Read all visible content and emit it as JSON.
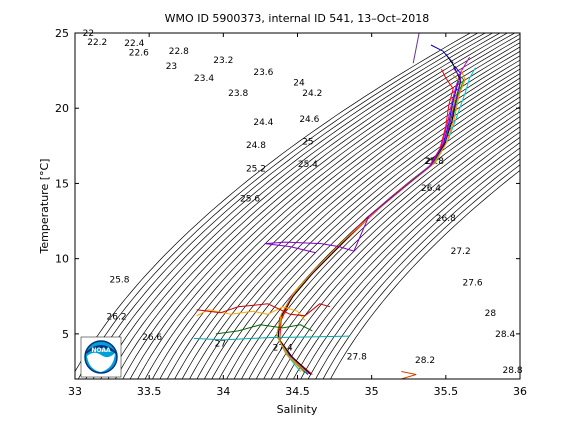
{
  "chart_data": {
    "type": "scatter",
    "title": "WMO ID 5900373, internal ID 541, 13–Oct–2018",
    "xlabel": "Salinity",
    "ylabel": "Temperature [°C]",
    "xlim": [
      33,
      36
    ],
    "ylim": [
      2,
      25
    ],
    "xticks": [
      33,
      33.5,
      34,
      34.5,
      35,
      35.5,
      36
    ],
    "yticks": [
      5,
      10,
      15,
      20,
      25
    ],
    "xtick_labels": [
      "33",
      "33.5",
      "34",
      "34.5",
      "35",
      "35.5",
      "36"
    ],
    "ytick_labels": [
      "5",
      "10",
      "15",
      "20",
      "25"
    ],
    "grid": false,
    "legend": "none",
    "sigma_contours": {
      "type": "density isopleths (sigma-theta)",
      "line_color": "#000000",
      "labels": [
        {
          "text": "22",
          "s": 33.09,
          "t": 24.8
        },
        {
          "text": "22.2",
          "s": 33.15,
          "t": 24.2
        },
        {
          "text": "22.4",
          "s": 33.4,
          "t": 24.15
        },
        {
          "text": "22.6",
          "s": 33.43,
          "t": 23.5
        },
        {
          "text": "22.8",
          "s": 33.7,
          "t": 23.6
        },
        {
          "text": "23",
          "s": 33.65,
          "t": 22.6
        },
        {
          "text": "23.2",
          "s": 34.0,
          "t": 23.0
        },
        {
          "text": "23.4",
          "s": 33.87,
          "t": 21.8
        },
        {
          "text": "23.6",
          "s": 34.27,
          "t": 22.2
        },
        {
          "text": "23.8",
          "s": 34.1,
          "t": 20.8
        },
        {
          "text": "24",
          "s": 34.51,
          "t": 21.5
        },
        {
          "text": "24.2",
          "s": 34.6,
          "t": 20.8
        },
        {
          "text": "24.4",
          "s": 34.27,
          "t": 18.9
        },
        {
          "text": "24.6",
          "s": 34.58,
          "t": 19.1
        },
        {
          "text": "24.8",
          "s": 34.22,
          "t": 17.35
        },
        {
          "text": "25",
          "s": 34.57,
          "t": 17.6
        },
        {
          "text": "25.2",
          "s": 34.22,
          "t": 15.8
        },
        {
          "text": "25.4",
          "s": 34.57,
          "t": 16.1
        },
        {
          "text": "25.6",
          "s": 34.18,
          "t": 13.8
        },
        {
          "text": "25.8",
          "s": 35.42,
          "t": 16.3
        },
        {
          "text": "26",
          "s": 35.4,
          "t": 16.3
        },
        {
          "text": "26.4",
          "s": 35.4,
          "t": 14.5
        },
        {
          "text": "26.8",
          "s": 35.5,
          "t": 12.5
        },
        {
          "text": "27.2",
          "s": 35.6,
          "t": 10.3
        },
        {
          "text": "27.6",
          "s": 35.68,
          "t": 8.2
        },
        {
          "text": "28",
          "s": 35.8,
          "t": 6.2
        },
        {
          "text": "28.4",
          "s": 35.9,
          "t": 4.8
        },
        {
          "text": "28.8",
          "s": 35.95,
          "t": 2.4
        },
        {
          "text": "25.8",
          "s": 33.3,
          "t": 8.4
        },
        {
          "text": "26.2",
          "s": 33.28,
          "t": 5.95
        },
        {
          "text": "26.6",
          "s": 33.52,
          "t": 4.6
        },
        {
          "text": "27",
          "s": 33.98,
          "t": 4.15
        },
        {
          "text": "27.4",
          "s": 34.4,
          "t": 3.9
        },
        {
          "text": "27.8",
          "s": 34.9,
          "t": 3.3
        },
        {
          "text": "28.2",
          "s": 35.36,
          "t": 3.05
        }
      ]
    },
    "profiles": {
      "type": "line",
      "note": "multiple overlapping T-S profiles (colored)",
      "series": [
        {
          "color": "#0000ff",
          "points": [
            [
              34.57,
              2.3
            ],
            [
              34.45,
              3.5
            ],
            [
              34.37,
              4.7
            ],
            [
              34.38,
              6
            ],
            [
              34.47,
              7.5
            ],
            [
              34.6,
              9
            ],
            [
              34.78,
              10.8
            ],
            [
              34.98,
              12.8
            ],
            [
              35.2,
              14.6
            ],
            [
              35.4,
              16.2
            ],
            [
              35.48,
              17.5
            ],
            [
              35.52,
              19
            ],
            [
              35.55,
              20.5
            ],
            [
              35.58,
              21.6
            ],
            [
              35.6,
              22.3
            ],
            [
              35.56,
              22.8
            ]
          ]
        },
        {
          "color": "#00aa00",
          "points": [
            [
              34.55,
              2.4
            ],
            [
              34.43,
              3.6
            ],
            [
              34.36,
              4.9
            ],
            [
              34.39,
              6.2
            ],
            [
              34.49,
              7.8
            ],
            [
              34.62,
              9.3
            ],
            [
              34.8,
              11
            ],
            [
              35.0,
              13
            ],
            [
              35.22,
              14.8
            ],
            [
              35.42,
              16.4
            ],
            [
              35.5,
              17.8
            ],
            [
              35.55,
              19.4
            ],
            [
              35.58,
              20.8
            ],
            [
              35.62,
              21.9
            ],
            [
              35.58,
              22.3
            ]
          ]
        },
        {
          "color": "#ff0000",
          "points": [
            [
              34.6,
              2.3
            ],
            [
              34.47,
              3.4
            ],
            [
              34.38,
              4.6
            ],
            [
              34.39,
              5.9
            ],
            [
              34.46,
              7.4
            ],
            [
              34.59,
              8.9
            ],
            [
              34.76,
              10.6
            ],
            [
              34.97,
              12.6
            ],
            [
              35.18,
              14.5
            ],
            [
              35.38,
              16.0
            ],
            [
              35.46,
              17.3
            ],
            [
              35.5,
              18.8
            ],
            [
              35.52,
              20.2
            ],
            [
              35.55,
              21.3
            ],
            [
              35.5,
              22.0
            ],
            [
              35.47,
              22.6
            ]
          ]
        },
        {
          "color": "#00cccc",
          "points": [
            [
              34.52,
              2.5
            ],
            [
              34.42,
              3.7
            ],
            [
              34.36,
              5.0
            ],
            [
              34.4,
              6.4
            ],
            [
              34.5,
              8.0
            ],
            [
              34.64,
              9.5
            ],
            [
              34.82,
              11.3
            ],
            [
              35.03,
              13.2
            ],
            [
              35.25,
              15.0
            ],
            [
              35.44,
              16.6
            ],
            [
              35.52,
              18.0
            ],
            [
              35.58,
              19.6
            ],
            [
              35.63,
              21.0
            ],
            [
              35.66,
              22.0
            ],
            [
              35.7,
              22.7
            ]
          ]
        },
        {
          "color": "#cc00cc",
          "points": [
            [
              34.58,
              2.35
            ],
            [
              34.46,
              3.45
            ],
            [
              34.37,
              4.75
            ],
            [
              34.38,
              6.05
            ],
            [
              34.46,
              7.55
            ],
            [
              34.6,
              9.05
            ],
            [
              34.77,
              10.75
            ],
            [
              34.97,
              12.75
            ],
            [
              35.19,
              14.55
            ],
            [
              35.39,
              16.15
            ],
            [
              35.47,
              17.45
            ],
            [
              35.51,
              18.95
            ],
            [
              35.54,
              20.4
            ],
            [
              35.57,
              21.5
            ],
            [
              35.6,
              22.4
            ],
            [
              35.66,
              23.4
            ]
          ]
        },
        {
          "color": "#aaaa00",
          "points": [
            [
              34.56,
              2.45
            ],
            [
              34.44,
              3.55
            ],
            [
              34.37,
              4.85
            ],
            [
              34.39,
              6.15
            ],
            [
              34.48,
              7.7
            ],
            [
              34.61,
              9.2
            ],
            [
              34.79,
              10.9
            ],
            [
              34.99,
              12.9
            ],
            [
              35.21,
              14.7
            ],
            [
              35.41,
              16.3
            ],
            [
              35.49,
              17.6
            ],
            [
              35.53,
              19.2
            ],
            [
              35.56,
              20.6
            ],
            [
              35.6,
              21.7
            ],
            [
              35.55,
              22.2
            ]
          ]
        },
        {
          "color": "#000000",
          "points": [
            [
              34.59,
              2.3
            ],
            [
              34.46,
              3.5
            ],
            [
              34.37,
              4.7
            ],
            [
              34.38,
              6.0
            ],
            [
              34.47,
              7.5
            ],
            [
              34.6,
              9.0
            ],
            [
              34.78,
              10.8
            ],
            [
              34.98,
              12.8
            ],
            [
              35.2,
              14.6
            ],
            [
              35.4,
              16.2
            ],
            [
              35.49,
              17.6
            ],
            [
              35.54,
              19.1
            ],
            [
              35.57,
              20.6
            ],
            [
              35.6,
              21.8
            ],
            [
              35.55,
              22.9
            ],
            [
              35.5,
              23.6
            ]
          ]
        },
        {
          "color": "#ff8800",
          "points": [
            [
              34.54,
              2.5
            ],
            [
              34.43,
              3.6
            ],
            [
              34.36,
              4.9
            ],
            [
              34.39,
              6.3
            ],
            [
              34.48,
              7.8
            ],
            [
              34.62,
              9.3
            ],
            [
              34.8,
              11.1
            ],
            [
              35.01,
              13.0
            ],
            [
              35.23,
              14.8
            ],
            [
              35.43,
              16.4
            ],
            [
              35.51,
              17.8
            ],
            [
              35.56,
              19.4
            ],
            [
              35.59,
              20.9
            ],
            [
              35.63,
              21.9
            ],
            [
              35.6,
              22.6
            ]
          ]
        },
        {
          "color": "#8800cc",
          "points": [
            [
              34.62,
              10.4
            ],
            [
              34.45,
              10.8
            ],
            [
              34.28,
              11.0
            ],
            [
              34.42,
              11.1
            ],
            [
              34.66,
              11.0
            ],
            [
              34.78,
              10.8
            ],
            [
              34.88,
              10.5
            ],
            [
              34.98,
              12.8
            ],
            [
              35.2,
              14.6
            ],
            [
              35.4,
              16.2
            ],
            [
              35.5,
              17.9
            ],
            [
              35.54,
              19.5
            ],
            [
              35.58,
              21.0
            ],
            [
              35.6,
              22.0
            ],
            [
              35.55,
              22.7
            ]
          ]
        },
        {
          "color": "#cc4400",
          "points": [
            [
              35.2,
              2.0
            ],
            [
              35.3,
              2.3
            ],
            [
              35.2,
              2.5
            ]
          ]
        },
        {
          "color": "#ffaa00",
          "points": [
            [
              33.82,
              6.2
            ],
            [
              33.9,
              6.6
            ],
            [
              34.05,
              6.3
            ],
            [
              34.2,
              6.5
            ],
            [
              34.3,
              6.3
            ],
            [
              34.4,
              6.8
            ],
            [
              34.5,
              6.5
            ],
            [
              34.55,
              5.9
            ]
          ]
        },
        {
          "color": "#cc0000",
          "points": [
            [
              33.82,
              6.6
            ],
            [
              33.98,
              6.4
            ],
            [
              34.1,
              6.8
            ],
            [
              34.3,
              7.0
            ],
            [
              34.45,
              6.3
            ],
            [
              34.55,
              6.2
            ],
            [
              34.65,
              7.0
            ],
            [
              34.72,
              6.8
            ]
          ]
        },
        {
          "color": "#00aaaa",
          "points": [
            [
              33.8,
              4.7
            ],
            [
              34.0,
              4.6
            ],
            [
              34.3,
              4.75
            ],
            [
              34.6,
              4.8
            ],
            [
              34.85,
              4.85
            ]
          ]
        },
        {
          "color": "#006600",
          "points": [
            [
              33.95,
              5.0
            ],
            [
              34.1,
              5.2
            ],
            [
              34.25,
              5.6
            ],
            [
              34.4,
              5.4
            ],
            [
              34.52,
              5.6
            ],
            [
              34.6,
              5.2
            ]
          ]
        },
        {
          "color": "#663399",
          "points": [
            [
              35.28,
              23.0
            ],
            [
              35.3,
              24.0
            ],
            [
              35.32,
              25.0
            ]
          ]
        },
        {
          "color": "#0000aa",
          "points": [
            [
              35.4,
              24.2
            ],
            [
              35.48,
              23.8
            ],
            [
              35.55,
              23.0
            ]
          ]
        }
      ]
    }
  }
}
